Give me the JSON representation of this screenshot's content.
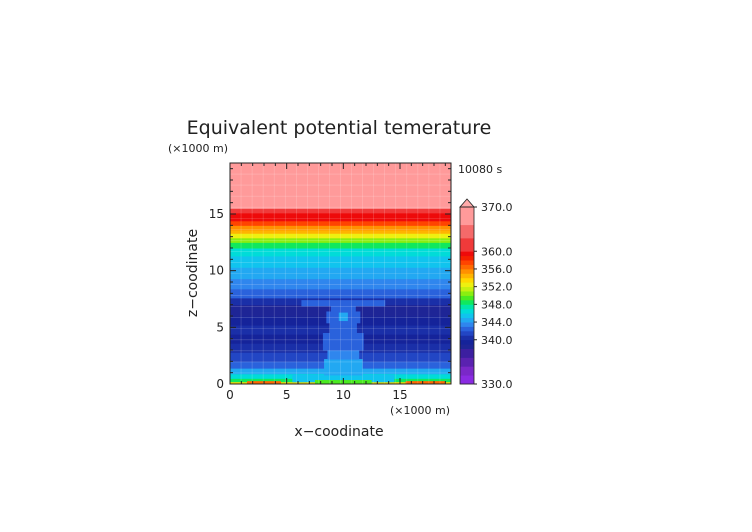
{
  "chart_data": {
    "type": "heatmap",
    "title": "Equivalent potential temerature",
    "time_label": "10080 s",
    "xlabel": "x−coodinate",
    "ylabel": "z−coodinate",
    "x_unit": "(×1000 m)",
    "y_unit": "(×1000 m)",
    "xlim": [
      0,
      19.5
    ],
    "ylim": [
      0,
      19.5
    ],
    "x_ticks": [
      0,
      5,
      10,
      15
    ],
    "y_ticks": [
      0,
      5,
      10,
      15
    ],
    "x_tick_labels": [
      "0",
      "5",
      "10",
      "15"
    ],
    "y_tick_labels": [
      "0",
      "5",
      "10",
      "15"
    ],
    "grid": true,
    "colorbar": {
      "min": 330.0,
      "max": 370.0,
      "extend_max": true,
      "tick_values": [
        370.0,
        360.0,
        356.0,
        352.0,
        348.0,
        344.0,
        340.0,
        330.0
      ],
      "tick_labels": [
        "370.0",
        "360.0",
        "356.0",
        "352.0",
        "348.0",
        "344.0",
        "340.0",
        "330.0"
      ],
      "bands": [
        {
          "from": 330,
          "to": 332,
          "color": "#8a2be2"
        },
        {
          "from": 332,
          "to": 334,
          "color": "#7a28c8"
        },
        {
          "from": 334,
          "to": 336,
          "color": "#5a22b0"
        },
        {
          "from": 336,
          "to": 338,
          "color": "#3c1fa0"
        },
        {
          "from": 338,
          "to": 339,
          "color": "#1e2596"
        },
        {
          "from": 339,
          "to": 340,
          "color": "#15239a"
        },
        {
          "from": 340,
          "to": 341,
          "color": "#1a2fa8"
        },
        {
          "from": 341,
          "to": 342,
          "color": "#2246c4"
        },
        {
          "from": 342,
          "to": 343,
          "color": "#2a62dc"
        },
        {
          "from": 343,
          "to": 344,
          "color": "#2f86ee"
        },
        {
          "from": 344,
          "to": 345,
          "color": "#22a8f2"
        },
        {
          "from": 345,
          "to": 346,
          "color": "#10c4ee"
        },
        {
          "from": 346,
          "to": 347,
          "color": "#00dcd8"
        },
        {
          "from": 347,
          "to": 348,
          "color": "#00e6a8"
        },
        {
          "from": 348,
          "to": 349,
          "color": "#10e85e"
        },
        {
          "from": 349,
          "to": 350,
          "color": "#4aea20"
        },
        {
          "from": 350,
          "to": 351,
          "color": "#8aee10"
        },
        {
          "from": 351,
          "to": 352,
          "color": "#c6f010"
        },
        {
          "from": 352,
          "to": 353,
          "color": "#eef010"
        },
        {
          "from": 353,
          "to": 354,
          "color": "#ffd800"
        },
        {
          "from": 354,
          "to": 355,
          "color": "#ffb400"
        },
        {
          "from": 355,
          "to": 356,
          "color": "#ff9000"
        },
        {
          "from": 356,
          "to": 357,
          "color": "#ff6800"
        },
        {
          "from": 357,
          "to": 358,
          "color": "#ff4400"
        },
        {
          "from": 358,
          "to": 359,
          "color": "#f52000"
        },
        {
          "from": 359,
          "to": 360,
          "color": "#ee0a0a"
        },
        {
          "from": 360,
          "to": 363,
          "color": "#f03a3a"
        },
        {
          "from": 363,
          "to": 366,
          "color": "#f56a6a"
        },
        {
          "from": 366,
          "to": 370,
          "color": "#ff9a9a"
        }
      ],
      "extend_color": "#ffaaaa"
    },
    "background_layers": [
      {
        "z_from": 0.0,
        "z_to": 0.2,
        "value": 353
      },
      {
        "z_from": 0.2,
        "z_to": 0.5,
        "value": 348.5
      },
      {
        "z_from": 0.5,
        "z_to": 0.9,
        "value": 346.5
      },
      {
        "z_from": 0.9,
        "z_to": 1.4,
        "value": 344.5
      },
      {
        "z_from": 1.4,
        "z_to": 2.0,
        "value": 342.5
      },
      {
        "z_from": 2.0,
        "z_to": 2.8,
        "value": 341.5
      },
      {
        "z_from": 2.8,
        "z_to": 3.6,
        "value": 340.5
      },
      {
        "z_from": 3.6,
        "z_to": 4.4,
        "value": 339.5
      },
      {
        "z_from": 4.4,
        "z_to": 5.2,
        "value": 340.5
      },
      {
        "z_from": 5.2,
        "z_to": 6.0,
        "value": 339.5
      },
      {
        "z_from": 6.0,
        "z_to": 7.0,
        "value": 338.5
      },
      {
        "z_from": 7.0,
        "z_to": 7.6,
        "value": 340.5
      },
      {
        "z_from": 7.6,
        "z_to": 8.4,
        "value": 342.5
      },
      {
        "z_from": 8.4,
        "z_to": 9.3,
        "value": 343.5
      },
      {
        "z_from": 9.3,
        "z_to": 10.3,
        "value": 344.5
      },
      {
        "z_from": 10.3,
        "z_to": 11.3,
        "value": 345.5
      },
      {
        "z_from": 11.3,
        "z_to": 12.0,
        "value": 346.5
      },
      {
        "z_from": 12.0,
        "z_to": 12.5,
        "value": 348.5
      },
      {
        "z_from": 12.5,
        "z_to": 12.9,
        "value": 350.5
      },
      {
        "z_from": 12.9,
        "z_to": 13.3,
        "value": 352.5
      },
      {
        "z_from": 13.3,
        "z_to": 13.6,
        "value": 354.5
      },
      {
        "z_from": 13.6,
        "z_to": 14.0,
        "value": 355.5
      },
      {
        "z_from": 14.0,
        "z_to": 14.4,
        "value": 357.5
      },
      {
        "z_from": 14.4,
        "z_to": 15.1,
        "value": 359.5
      },
      {
        "z_from": 15.1,
        "z_to": 15.5,
        "value": 362
      },
      {
        "z_from": 15.5,
        "z_to": 19.5,
        "value": 368
      }
    ],
    "plume_segments": [
      {
        "z_from": 0.2,
        "z_to": 0.8,
        "x_from": 5.5,
        "x_to": 14.5,
        "value": 345.5
      },
      {
        "z_from": 0.8,
        "z_to": 2.2,
        "x_from": 8.3,
        "x_to": 11.7,
        "value": 344.5
      },
      {
        "z_from": 2.2,
        "z_to": 3.0,
        "x_from": 8.6,
        "x_to": 11.4,
        "value": 343.5
      },
      {
        "z_from": 3.0,
        "z_to": 4.5,
        "x_from": 8.2,
        "x_to": 11.8,
        "value": 342.5
      },
      {
        "z_from": 4.5,
        "z_to": 5.4,
        "x_from": 8.8,
        "x_to": 11.2,
        "value": 342.5
      },
      {
        "z_from": 5.4,
        "z_to": 6.4,
        "x_from": 8.5,
        "x_to": 11.5,
        "value": 342.5
      },
      {
        "z_from": 5.6,
        "z_to": 6.3,
        "x_from": 9.6,
        "x_to": 10.4,
        "value": 344.5
      },
      {
        "z_from": 6.4,
        "z_to": 6.9,
        "x_from": 8.9,
        "x_to": 11.1,
        "value": 342.5
      },
      {
        "z_from": 6.9,
        "z_to": 7.4,
        "x_from": 6.3,
        "x_to": 13.7,
        "value": 342.5
      }
    ],
    "surface_segments": [
      {
        "z_from": 0.0,
        "z_to": 0.25,
        "x_from": 1.5,
        "x_to": 4.5,
        "value": 356.5
      },
      {
        "z_from": 0.0,
        "z_to": 0.25,
        "x_from": 15.5,
        "x_to": 19.0,
        "value": 356.5
      },
      {
        "z_from": 0.0,
        "z_to": 0.35,
        "x_from": 7.5,
        "x_to": 12.5,
        "value": 349.5
      }
    ]
  }
}
